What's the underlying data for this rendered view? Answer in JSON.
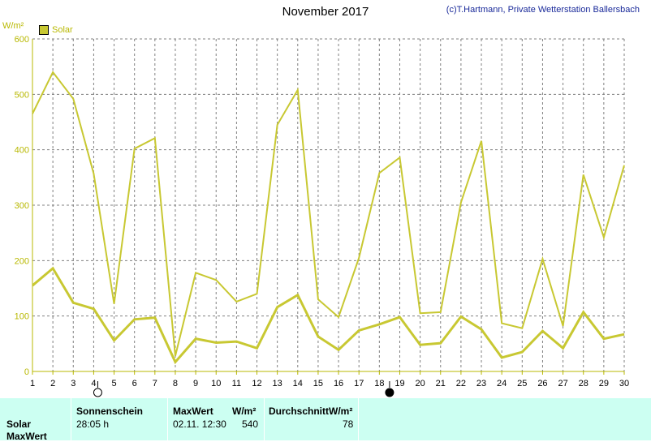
{
  "header": {
    "title": "November 2017",
    "credit": "(c)T.Hartmann, Private Wetterstation Ballersbach",
    "unit": "W/m²",
    "legend_label": "Solar"
  },
  "colors": {
    "series": "#c8c832",
    "axis_text": "#b8b800",
    "grid": "#808080",
    "table_bg": "#ccfff2"
  },
  "chart_data": {
    "type": "line",
    "x": [
      1,
      2,
      3,
      4,
      5,
      6,
      7,
      8,
      9,
      10,
      11,
      12,
      13,
      14,
      15,
      16,
      17,
      18,
      19,
      20,
      21,
      22,
      23,
      24,
      25,
      26,
      27,
      28,
      29,
      30
    ],
    "x_ticks": [
      "1",
      "2",
      "3",
      "4",
      "5",
      "6",
      "7",
      "8",
      "9",
      "10",
      "11",
      "12",
      "13",
      "14",
      "15",
      "16",
      "17",
      "18",
      "19",
      "20",
      "21",
      "22",
      "23",
      "24",
      "25",
      "26",
      "27",
      "28",
      "29",
      "30"
    ],
    "ylim": [
      0,
      600
    ],
    "y_ticks": [
      "0",
      "100",
      "200",
      "300",
      "400",
      "500",
      "600"
    ],
    "ylabel": "W/m²",
    "grid": true,
    "legend": "top-left",
    "series": [
      {
        "name": "Solar MaxWert",
        "values": [
          465,
          540,
          492,
          357,
          122,
          402,
          421,
          28,
          178,
          165,
          126,
          140,
          445,
          508,
          130,
          98,
          205,
          358,
          386,
          105,
          107,
          305,
          416,
          87,
          78,
          203,
          82,
          355,
          242,
          372
        ]
      },
      {
        "name": "Solar",
        "values": [
          155,
          186,
          124,
          113,
          56,
          94,
          97,
          17,
          59,
          52,
          54,
          42,
          116,
          138,
          63,
          39,
          74,
          85,
          98,
          48,
          51,
          99,
          76,
          25,
          35,
          73,
          42,
          107,
          59,
          67
        ]
      }
    ],
    "moon_markers": [
      {
        "day": 4.2,
        "phase": "full-moon"
      },
      {
        "day": 18.5,
        "phase": "new-moon"
      }
    ]
  },
  "table": {
    "row_labels": [
      "Solar",
      "MaxWert"
    ],
    "col_sonnenschein": "Sonnenschein",
    "col_maxwert": "MaxWert",
    "col_wm2": "W/m²",
    "col_durchschnitt": "DurchschnittW/m²",
    "sonnenschein_value": "28:05 h",
    "maxwert_date": "02.11.  12:30",
    "maxwert_value": "540",
    "durchschnitt_value": "78"
  }
}
